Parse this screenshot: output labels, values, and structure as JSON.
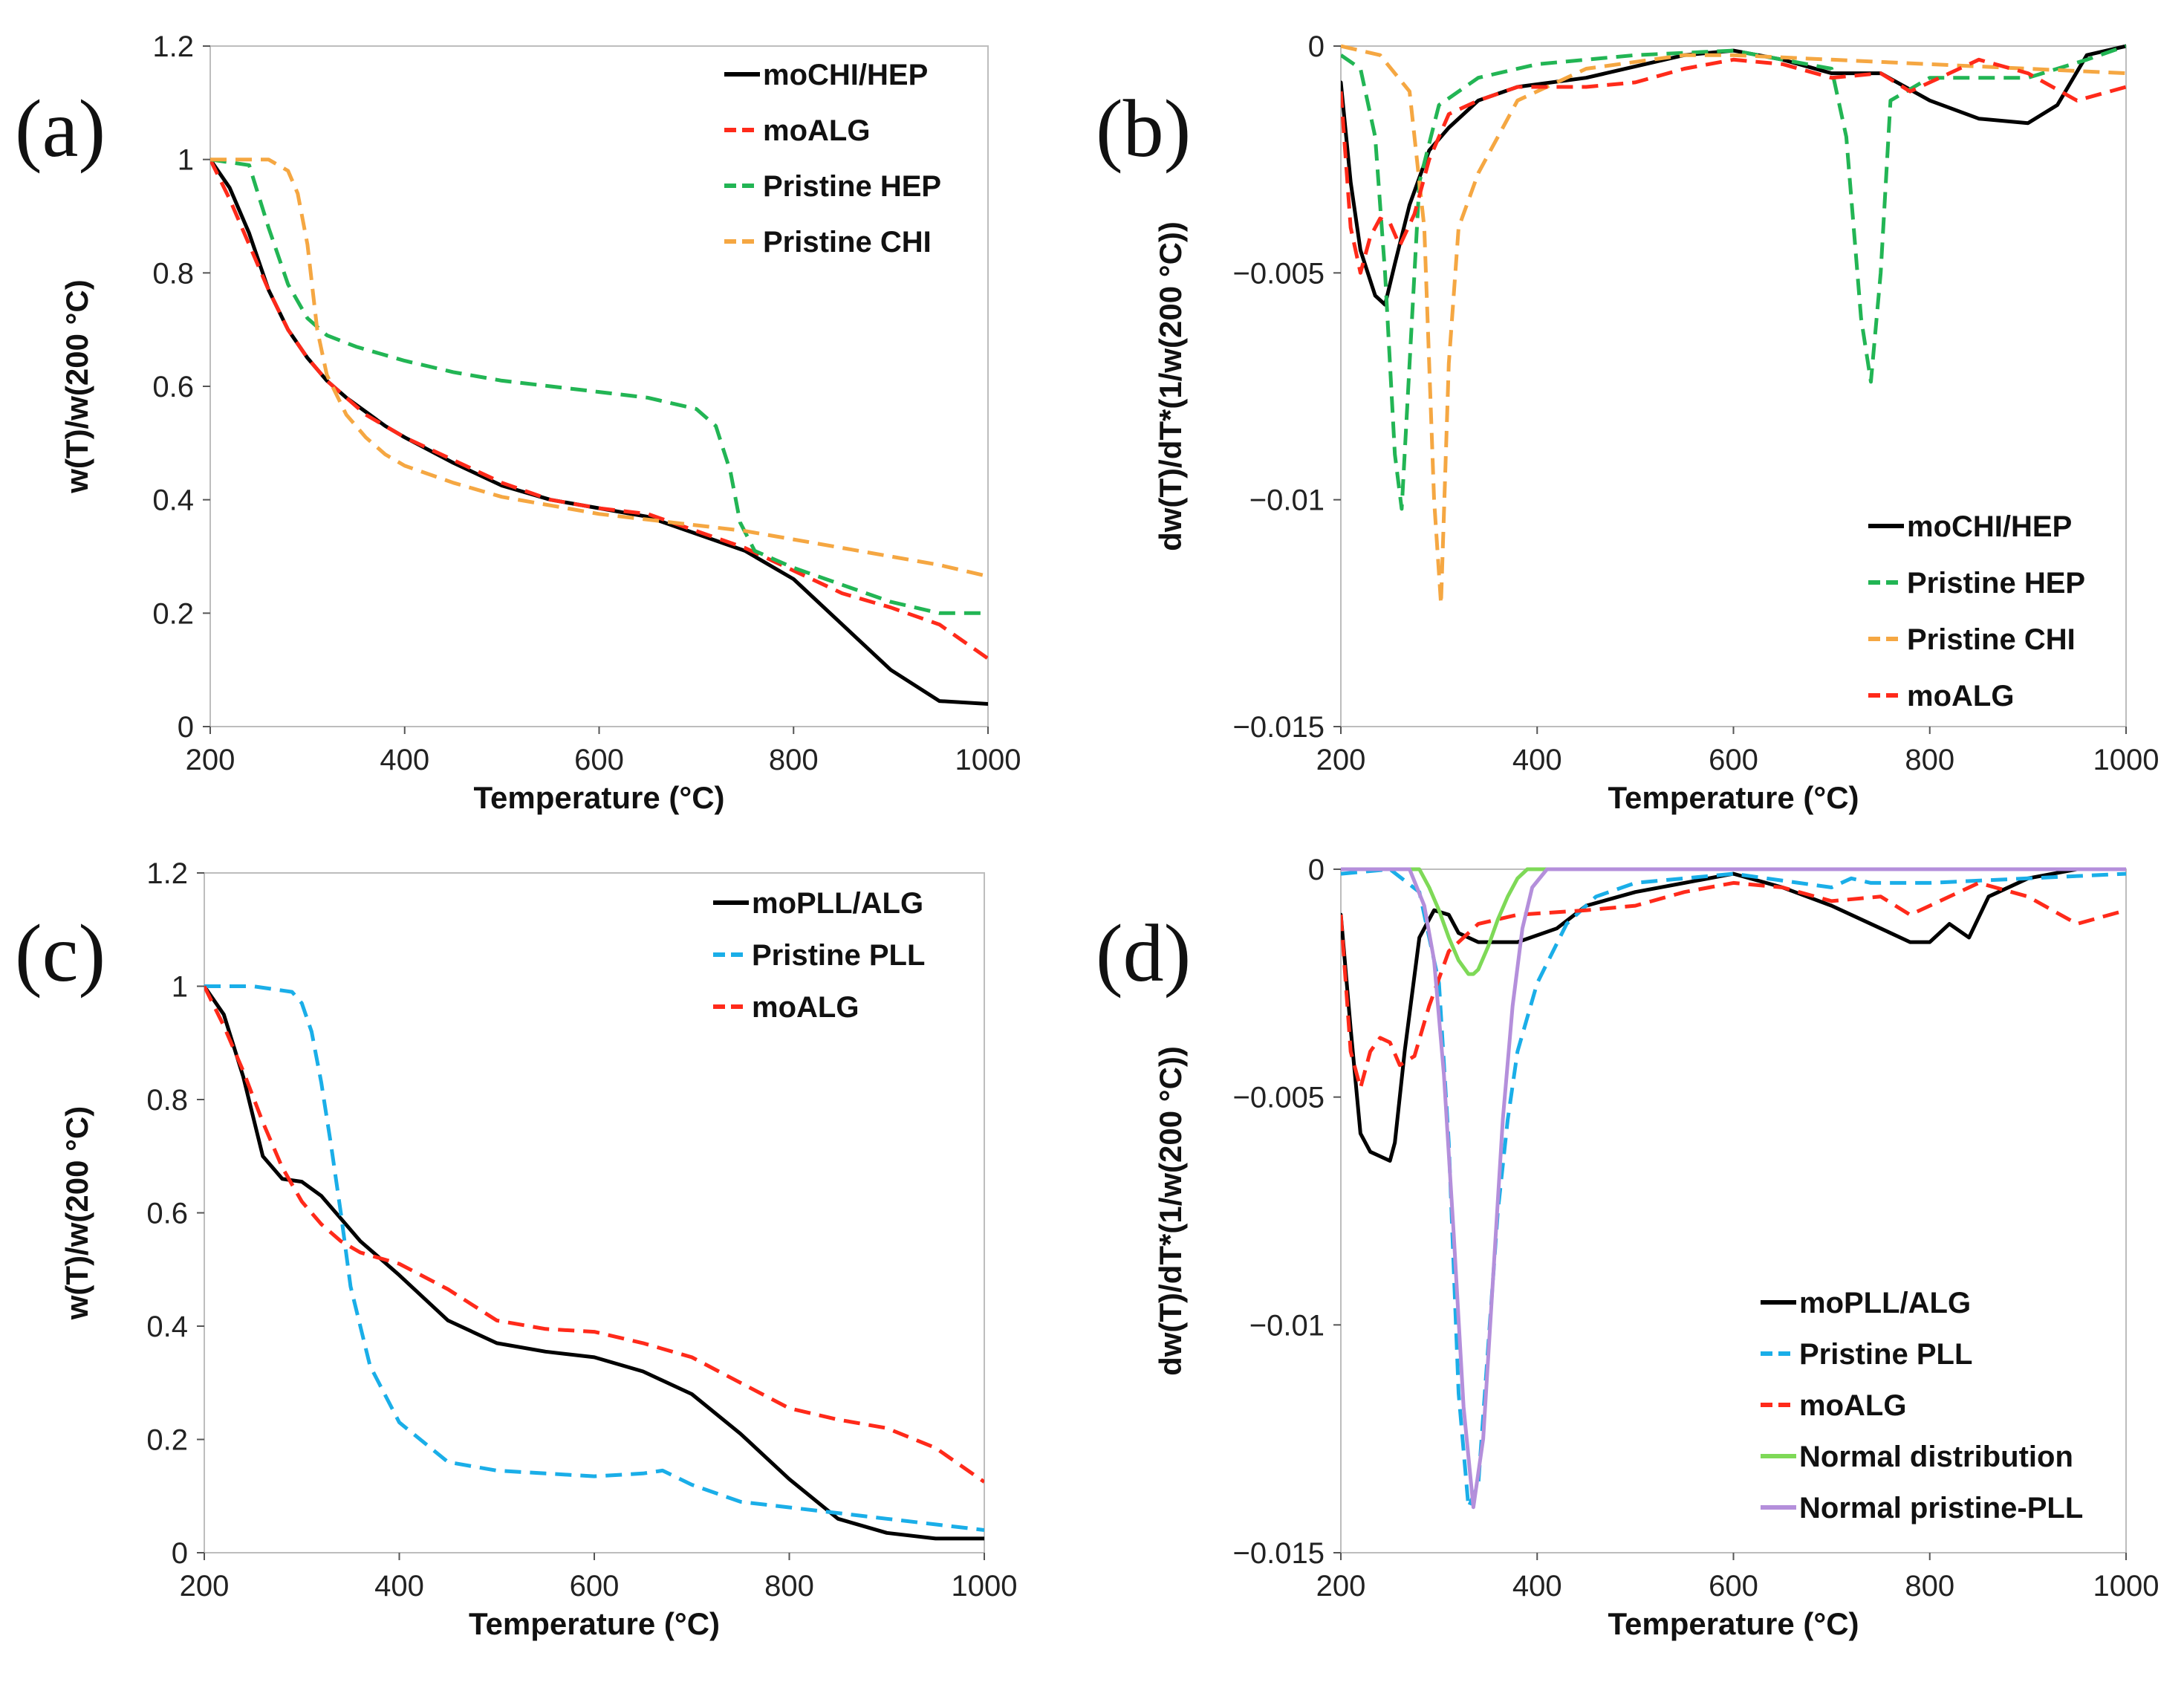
{
  "chart_data": [
    {
      "id": "a",
      "type": "line",
      "panel_label": "(a)",
      "xlabel": "Temperature (°C)",
      "ylabel": "w(T)/w(200 °C)",
      "xlim": [
        200,
        1000
      ],
      "ylim": [
        0,
        1.2
      ],
      "xticks": [
        200,
        400,
        600,
        800,
        1000
      ],
      "yticks": [
        0,
        0.2,
        0.4,
        0.6,
        0.8,
        1,
        1.2
      ],
      "xtick_labels": [
        "200",
        "400",
        "600",
        "800",
        "1000"
      ],
      "ytick_labels": [
        "0",
        "0.2",
        "0.4",
        "0.6",
        "0.8",
        "1",
        "1.2"
      ],
      "legend_position": "top-right",
      "series": [
        {
          "name": "moCHI/HEP",
          "color": "#000000",
          "dash": "solid",
          "x": [
            200,
            220,
            240,
            260,
            280,
            300,
            320,
            340,
            360,
            380,
            400,
            450,
            500,
            550,
            600,
            650,
            700,
            750,
            800,
            850,
            900,
            950,
            1000
          ],
          "y": [
            1.0,
            0.95,
            0.87,
            0.77,
            0.7,
            0.65,
            0.61,
            0.58,
            0.555,
            0.53,
            0.51,
            0.465,
            0.425,
            0.4,
            0.385,
            0.37,
            0.34,
            0.31,
            0.26,
            0.18,
            0.1,
            0.045,
            0.04
          ]
        },
        {
          "name": "moALG",
          "color": "#ff2a1a",
          "dash": "dashed",
          "x": [
            200,
            220,
            240,
            260,
            280,
            300,
            320,
            340,
            360,
            380,
            400,
            450,
            500,
            550,
            600,
            650,
            700,
            750,
            800,
            850,
            900,
            950,
            1000
          ],
          "y": [
            1.0,
            0.93,
            0.85,
            0.77,
            0.7,
            0.65,
            0.61,
            0.58,
            0.55,
            0.53,
            0.51,
            0.47,
            0.43,
            0.4,
            0.385,
            0.375,
            0.345,
            0.315,
            0.275,
            0.235,
            0.21,
            0.18,
            0.12
          ]
        },
        {
          "name": "Pristine HEP",
          "color": "#22b554",
          "dash": "dashed",
          "x": [
            200,
            240,
            260,
            280,
            300,
            320,
            350,
            400,
            450,
            500,
            550,
            600,
            650,
            700,
            720,
            735,
            745,
            760,
            800,
            850,
            900,
            950,
            1000
          ],
          "y": [
            1.0,
            0.99,
            0.88,
            0.78,
            0.72,
            0.69,
            0.67,
            0.645,
            0.625,
            0.61,
            0.6,
            0.59,
            0.58,
            0.56,
            0.53,
            0.45,
            0.36,
            0.31,
            0.28,
            0.25,
            0.22,
            0.2,
            0.2
          ]
        },
        {
          "name": "Pristine CHI",
          "color": "#f5a742",
          "dash": "dashed",
          "x": [
            200,
            260,
            280,
            290,
            300,
            310,
            320,
            340,
            360,
            380,
            400,
            450,
            500,
            550,
            600,
            650,
            700,
            750,
            800,
            850,
            900,
            950,
            1000
          ],
          "y": [
            1.0,
            1.0,
            0.98,
            0.94,
            0.85,
            0.7,
            0.62,
            0.55,
            0.51,
            0.48,
            0.46,
            0.43,
            0.405,
            0.39,
            0.375,
            0.365,
            0.355,
            0.345,
            0.33,
            0.315,
            0.3,
            0.285,
            0.265
          ]
        }
      ]
    },
    {
      "id": "b",
      "type": "line",
      "panel_label": "(b)",
      "xlabel": "Temperature (°C)",
      "ylabel": "dw(T)/dT*(1/w(200 °C))",
      "xlim": [
        200,
        1000
      ],
      "ylim": [
        -0.015,
        0
      ],
      "xticks": [
        200,
        400,
        600,
        800,
        1000
      ],
      "yticks": [
        -0.015,
        -0.01,
        -0.005,
        0
      ],
      "xtick_labels": [
        "200",
        "400",
        "600",
        "800",
        "1000"
      ],
      "ytick_labels": [
        "−0.015",
        "−0.01",
        "−0.005",
        "0"
      ],
      "legend_position": "bottom-right",
      "series": [
        {
          "name": "moCHI/HEP",
          "color": "#000000",
          "dash": "solid",
          "x": [
            200,
            210,
            220,
            235,
            245,
            255,
            270,
            290,
            310,
            340,
            380,
            450,
            550,
            600,
            650,
            700,
            750,
            800,
            850,
            900,
            930,
            960,
            1000
          ],
          "y": [
            -0.0008,
            -0.003,
            -0.0045,
            -0.0055,
            -0.0057,
            -0.0048,
            -0.0035,
            -0.0023,
            -0.0018,
            -0.0012,
            -0.0009,
            -0.0007,
            -0.0002,
            -0.0001,
            -0.0003,
            -0.0006,
            -0.0006,
            -0.0012,
            -0.0016,
            -0.0017,
            -0.0013,
            -0.0002,
            0.0
          ]
        },
        {
          "name": "Pristine HEP",
          "color": "#22b554",
          "dash": "dashed",
          "x": [
            200,
            220,
            235,
            245,
            255,
            262,
            270,
            280,
            300,
            340,
            400,
            500,
            600,
            700,
            715,
            730,
            740,
            750,
            760,
            800,
            900,
            960,
            1000
          ],
          "y": [
            -0.0002,
            -0.0005,
            -0.002,
            -0.005,
            -0.009,
            -0.0102,
            -0.007,
            -0.003,
            -0.0013,
            -0.0007,
            -0.0004,
            -0.0002,
            -0.0001,
            -0.0005,
            -0.002,
            -0.006,
            -0.0074,
            -0.005,
            -0.0012,
            -0.0007,
            -0.0007,
            -0.0003,
            0.0
          ]
        },
        {
          "name": "Pristine CHI",
          "color": "#f5a742",
          "dash": "dashed",
          "x": [
            200,
            240,
            270,
            285,
            295,
            302,
            310,
            320,
            340,
            380,
            450,
            550,
            600,
            700,
            800,
            900,
            1000
          ],
          "y": [
            0.0,
            -0.0002,
            -0.001,
            -0.004,
            -0.01,
            -0.0123,
            -0.007,
            -0.004,
            -0.0028,
            -0.0012,
            -0.0005,
            -0.0002,
            -0.0002,
            -0.0003,
            -0.0004,
            -0.0005,
            -0.0006
          ]
        },
        {
          "name": "moALG",
          "color": "#ff2a1a",
          "dash": "dashed",
          "x": [
            200,
            210,
            220,
            230,
            240,
            250,
            260,
            275,
            290,
            310,
            340,
            380,
            450,
            500,
            550,
            600,
            650,
            700,
            750,
            780,
            800,
            850,
            900,
            950,
            1000
          ],
          "y": [
            -0.001,
            -0.004,
            -0.005,
            -0.0042,
            -0.0038,
            -0.0039,
            -0.0044,
            -0.0037,
            -0.0025,
            -0.0015,
            -0.0012,
            -0.0009,
            -0.0009,
            -0.0008,
            -0.0005,
            -0.0003,
            -0.0004,
            -0.0007,
            -0.0006,
            -0.001,
            -0.0008,
            -0.0003,
            -0.0006,
            -0.0012,
            -0.0009
          ]
        }
      ]
    },
    {
      "id": "c",
      "type": "line",
      "panel_label": "(c)",
      "xlabel": "Temperature (°C)",
      "ylabel": "w(T)/w(200 °C)",
      "xlim": [
        200,
        1000
      ],
      "ylim": [
        0,
        1.2
      ],
      "xticks": [
        200,
        400,
        600,
        800,
        1000
      ],
      "yticks": [
        0,
        0.2,
        0.4,
        0.6,
        0.8,
        1,
        1.2
      ],
      "xtick_labels": [
        "200",
        "400",
        "600",
        "800",
        "1000"
      ],
      "ytick_labels": [
        "0",
        "0.2",
        "0.4",
        "0.6",
        "0.8",
        "1",
        "1.2"
      ],
      "legend_position": "top-right",
      "series": [
        {
          "name": "moPLL/ALG",
          "color": "#000000",
          "dash": "solid",
          "x": [
            200,
            220,
            240,
            260,
            280,
            300,
            320,
            340,
            360,
            380,
            400,
            450,
            500,
            550,
            600,
            650,
            700,
            750,
            800,
            850,
            900,
            950,
            1000
          ],
          "y": [
            1.0,
            0.95,
            0.84,
            0.7,
            0.66,
            0.655,
            0.63,
            0.59,
            0.55,
            0.52,
            0.49,
            0.41,
            0.37,
            0.355,
            0.345,
            0.32,
            0.28,
            0.21,
            0.13,
            0.06,
            0.035,
            0.025,
            0.025
          ]
        },
        {
          "name": "Pristine PLL",
          "color": "#1aaee8",
          "dash": "dashed",
          "x": [
            200,
            250,
            290,
            300,
            310,
            320,
            330,
            340,
            350,
            370,
            400,
            450,
            500,
            550,
            600,
            650,
            670,
            700,
            750,
            800,
            850,
            900,
            950,
            1000
          ],
          "y": [
            1.0,
            1.0,
            0.99,
            0.97,
            0.92,
            0.83,
            0.72,
            0.6,
            0.47,
            0.33,
            0.23,
            0.16,
            0.145,
            0.14,
            0.135,
            0.14,
            0.145,
            0.12,
            0.09,
            0.08,
            0.07,
            0.06,
            0.05,
            0.04
          ]
        },
        {
          "name": "moALG",
          "color": "#ff2a1a",
          "dash": "dashed",
          "x": [
            200,
            220,
            240,
            260,
            280,
            300,
            320,
            340,
            360,
            380,
            400,
            450,
            500,
            550,
            600,
            650,
            700,
            750,
            800,
            850,
            900,
            950,
            1000
          ],
          "y": [
            1.0,
            0.93,
            0.85,
            0.76,
            0.68,
            0.62,
            0.58,
            0.55,
            0.53,
            0.52,
            0.51,
            0.465,
            0.41,
            0.395,
            0.39,
            0.37,
            0.345,
            0.3,
            0.255,
            0.235,
            0.22,
            0.185,
            0.125
          ]
        }
      ]
    },
    {
      "id": "d",
      "type": "line",
      "panel_label": "(d)",
      "xlabel": "Temperature (°C)",
      "ylabel": "dw(T)/dT*(1/w(200 °C))",
      "xlim": [
        200,
        1000
      ],
      "ylim": [
        -0.015,
        0
      ],
      "xticks": [
        200,
        400,
        600,
        800,
        1000
      ],
      "yticks": [
        -0.015,
        -0.01,
        -0.005,
        0
      ],
      "xtick_labels": [
        "200",
        "400",
        "600",
        "800",
        "1000"
      ],
      "ytick_labels": [
        "−0.015",
        "−0.01",
        "−0.005",
        "0"
      ],
      "legend_position": "bottom-right",
      "series": [
        {
          "name": "moPLL/ALG",
          "color": "#000000",
          "dash": "solid",
          "x": [
            200,
            210,
            220,
            230,
            240,
            250,
            255,
            265,
            280,
            295,
            310,
            320,
            340,
            380,
            420,
            450,
            500,
            550,
            600,
            650,
            700,
            750,
            780,
            800,
            820,
            840,
            860,
            900,
            950,
            1000
          ],
          "y": [
            -0.001,
            -0.0035,
            -0.0058,
            -0.0062,
            -0.0063,
            -0.0064,
            -0.006,
            -0.004,
            -0.0015,
            -0.0009,
            -0.001,
            -0.0014,
            -0.0016,
            -0.0016,
            -0.0013,
            -0.0008,
            -0.0005,
            -0.0003,
            -0.0001,
            -0.0004,
            -0.0008,
            -0.0013,
            -0.0016,
            -0.0016,
            -0.0012,
            -0.0015,
            -0.0006,
            -0.0002,
            0.0,
            0.0
          ]
        },
        {
          "name": "Pristine PLL",
          "color": "#1aaee8",
          "dash": "dashed",
          "x": [
            200,
            250,
            280,
            300,
            310,
            320,
            330,
            340,
            350,
            360,
            370,
            380,
            400,
            430,
            460,
            500,
            600,
            700,
            720,
            740,
            800,
            900,
            1000
          ],
          "y": [
            -0.0001,
            0.0,
            -0.0005,
            -0.0025,
            -0.006,
            -0.0115,
            -0.014,
            -0.0135,
            -0.0105,
            -0.0075,
            -0.0055,
            -0.004,
            -0.0025,
            -0.0012,
            -0.0006,
            -0.0003,
            -0.0001,
            -0.0004,
            -0.0002,
            -0.0003,
            -0.0003,
            -0.0002,
            -0.0001
          ]
        },
        {
          "name": "moALG",
          "color": "#ff2a1a",
          "dash": "dashed",
          "x": [
            200,
            210,
            220,
            230,
            240,
            250,
            260,
            275,
            290,
            310,
            340,
            380,
            450,
            500,
            550,
            600,
            650,
            700,
            750,
            780,
            800,
            850,
            900,
            950,
            1000
          ],
          "y": [
            -0.001,
            -0.004,
            -0.0048,
            -0.004,
            -0.0037,
            -0.0038,
            -0.0043,
            -0.0041,
            -0.003,
            -0.0018,
            -0.0012,
            -0.001,
            -0.0009,
            -0.0008,
            -0.0005,
            -0.0003,
            -0.0004,
            -0.0007,
            -0.0006,
            -0.001,
            -0.0008,
            -0.0003,
            -0.0006,
            -0.0012,
            -0.0009
          ]
        },
        {
          "name": "Normal distribution",
          "color": "#7ed957",
          "dash": "solid",
          "x": [
            200,
            280,
            290,
            300,
            310,
            320,
            330,
            335,
            340,
            350,
            360,
            370,
            380,
            390,
            1000
          ],
          "y": [
            0.0,
            0.0,
            -0.0004,
            -0.0009,
            -0.0015,
            -0.002,
            -0.0023,
            -0.0023,
            -0.0022,
            -0.0017,
            -0.0011,
            -0.0006,
            -0.0002,
            0.0,
            0.0
          ]
        },
        {
          "name": "Normal pristine-PLL",
          "color": "#b48fdb",
          "dash": "solid",
          "x": [
            200,
            270,
            285,
            295,
            305,
            315,
            325,
            335,
            345,
            355,
            365,
            375,
            385,
            395,
            410,
            1000
          ],
          "y": [
            0.0,
            0.0,
            -0.0008,
            -0.002,
            -0.0045,
            -0.008,
            -0.0118,
            -0.014,
            -0.0125,
            -0.009,
            -0.0055,
            -0.003,
            -0.0013,
            -0.0004,
            0.0,
            0.0
          ]
        }
      ]
    }
  ]
}
